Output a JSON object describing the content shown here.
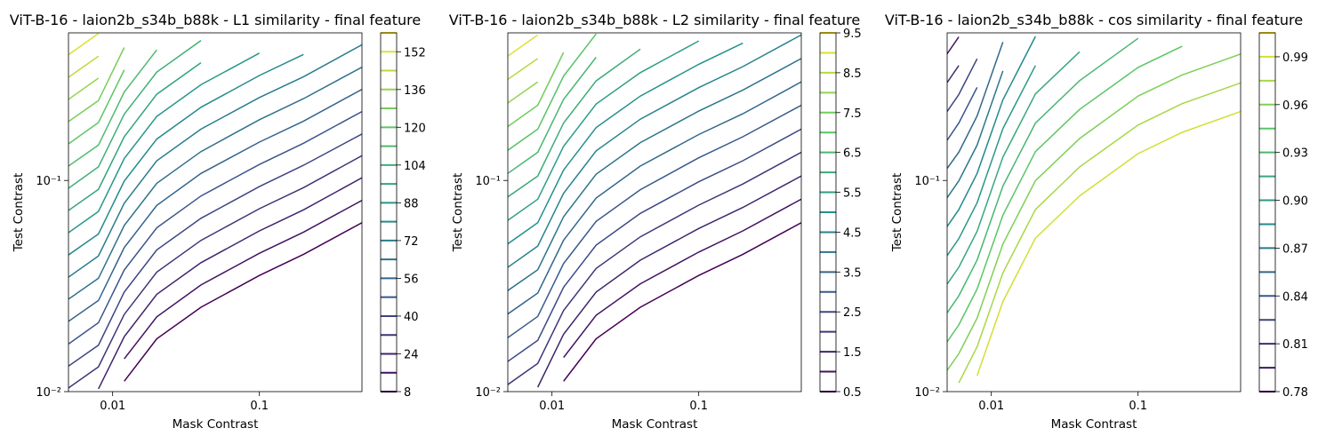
{
  "chart_data": [
    {
      "type": "contour",
      "title": "ViT-B-16 - laion2b_s34b_b88k - L1 similarity - final feature",
      "x_label": "Mask Contrast",
      "y_label": "Test Contrast",
      "xscale": "log",
      "yscale": "log",
      "colormap": "viridis",
      "xlim": [
        0.005,
        0.5
      ],
      "ylim": [
        0.01,
        0.5
      ],
      "xticks": [
        0.01,
        0.1
      ],
      "yticks": [
        {
          "value": 0.01,
          "label": "10⁻²"
        },
        {
          "value": 0.1,
          "label": "10⁻¹"
        }
      ],
      "colorbar_lim": [
        8,
        160
      ],
      "levels": [
        8,
        16,
        24,
        32,
        40,
        48,
        56,
        64,
        72,
        80,
        88,
        96,
        104,
        112,
        120,
        128,
        136,
        144,
        152,
        160
      ],
      "colorbar_ticks": [
        8,
        24,
        40,
        56,
        72,
        88,
        104,
        120,
        136,
        152
      ],
      "x": [
        0.005,
        0.008,
        0.012,
        0.02,
        0.04,
        0.1,
        0.2,
        0.5
      ],
      "series": [
        {
          "level": 8,
          "values": [
            null,
            null,
            0.0112,
            0.0178,
            0.0251,
            0.0355,
            0.0447,
            0.0631
          ]
        },
        {
          "level": 16,
          "values": [
            null,
            null,
            0.0143,
            0.0226,
            0.032,
            0.0452,
            0.0569,
            0.0804
          ]
        },
        {
          "level": 24,
          "values": [
            null,
            0.0103,
            0.0182,
            0.0289,
            0.0408,
            0.0577,
            0.0726,
            0.103
          ]
        },
        {
          "level": 32,
          "values": [
            0.0104,
            0.0131,
            0.0232,
            0.0368,
            0.052,
            0.0735,
            0.0925,
            0.131
          ]
        },
        {
          "level": 40,
          "values": [
            0.0132,
            0.0166,
            0.0296,
            0.0469,
            0.0662,
            0.0935,
            0.118,
            0.166
          ]
        },
        {
          "level": 48,
          "values": [
            0.0168,
            0.0212,
            0.0377,
            0.0597,
            0.0844,
            0.119,
            0.15,
            0.212
          ]
        },
        {
          "level": 56,
          "values": [
            0.0215,
            0.027,
            0.0481,
            0.0762,
            0.108,
            0.152,
            0.191,
            0.27
          ]
        },
        {
          "level": 64,
          "values": [
            0.0274,
            0.0344,
            0.0612,
            0.097,
            0.137,
            0.194,
            0.244,
            0.344
          ]
        },
        {
          "level": 72,
          "values": [
            0.0348,
            0.0439,
            0.078,
            0.124,
            0.175,
            0.247,
            0.31,
            0.439
          ]
        },
        {
          "level": 80,
          "values": [
            0.0444,
            0.0558,
            0.0993,
            0.157,
            0.222,
            0.314,
            0.395,
            null
          ]
        },
        {
          "level": 88,
          "values": [
            0.0566,
            0.0713,
            0.127,
            0.201,
            0.284,
            0.401,
            null,
            null
          ]
        },
        {
          "level": 96,
          "values": [
            0.0721,
            0.0908,
            0.161,
            0.256,
            0.361,
            null,
            null,
            null
          ]
        },
        {
          "level": 104,
          "values": [
            0.0918,
            0.116,
            0.206,
            0.326,
            0.46,
            null,
            null,
            null
          ]
        },
        {
          "level": 112,
          "values": [
            0.117,
            0.147,
            0.262,
            0.415,
            null,
            null,
            null,
            null
          ]
        },
        {
          "level": 120,
          "values": [
            0.149,
            0.188,
            0.334,
            null,
            null,
            null,
            null,
            null
          ]
        },
        {
          "level": 128,
          "values": [
            0.19,
            0.239,
            0.426,
            null,
            null,
            null,
            null,
            null
          ]
        },
        {
          "level": 136,
          "values": [
            0.242,
            0.305,
            null,
            null,
            null,
            null,
            null,
            null
          ]
        },
        {
          "level": 144,
          "values": [
            0.308,
            0.388,
            null,
            null,
            null,
            null,
            null,
            null
          ]
        },
        {
          "level": 152,
          "values": [
            0.394,
            0.496,
            null,
            null,
            null,
            null,
            null,
            null
          ]
        }
      ]
    },
    {
      "type": "contour",
      "title": "ViT-B-16 - laion2b_s34b_b88k - L2 similarity - final feature",
      "x_label": "Mask Contrast",
      "y_label": "Test Contrast",
      "xscale": "log",
      "yscale": "log",
      "colormap": "viridis",
      "xlim": [
        0.005,
        0.5
      ],
      "ylim": [
        0.01,
        0.5
      ],
      "xticks": [
        0.01,
        0.1
      ],
      "yticks": [
        {
          "value": 0.01,
          "label": "10⁻²"
        },
        {
          "value": 0.1,
          "label": "10⁻¹"
        }
      ],
      "colorbar_lim": [
        0.5,
        9.5
      ],
      "levels": [
        0.5,
        1,
        1.5,
        2,
        2.5,
        3,
        3.5,
        4,
        4.5,
        5,
        5.5,
        6,
        6.5,
        7,
        7.5,
        8,
        8.5,
        9,
        9.5
      ],
      "colorbar_ticks": [
        0.5,
        1.5,
        2.5,
        3.5,
        4.5,
        5.5,
        6.5,
        7.5,
        8.5,
        9.5
      ],
      "x": [
        0.005,
        0.008,
        0.012,
        0.02,
        0.04,
        0.1,
        0.2,
        0.5
      ],
      "series": [
        {
          "level": 0.5,
          "values": [
            null,
            null,
            0.0112,
            0.0178,
            0.0251,
            0.0355,
            0.0447,
            0.0631
          ]
        },
        {
          "level": 1,
          "values": [
            null,
            null,
            0.0145,
            0.023,
            0.0324,
            0.0458,
            0.0577,
            0.0815
          ]
        },
        {
          "level": 1.5,
          "values": [
            null,
            0.0105,
            0.0187,
            0.0296,
            0.0419,
            0.0592,
            0.0745,
            0.105
          ]
        },
        {
          "level": 2,
          "values": [
            0.0108,
            0.0136,
            0.0242,
            0.0383,
            0.0541,
            0.0764,
            0.0962,
            0.136
          ]
        },
        {
          "level": 2.5,
          "values": [
            0.0139,
            0.0175,
            0.0312,
            0.0494,
            0.0698,
            0.0986,
            0.124,
            0.175
          ]
        },
        {
          "level": 3,
          "values": [
            0.018,
            0.0227,
            0.0404,
            0.064,
            0.0904,
            0.128,
            0.161,
            0.227
          ]
        },
        {
          "level": 3.5,
          "values": [
            0.0233,
            0.0293,
            0.0521,
            0.0826,
            0.117,
            0.165,
            0.207,
            0.293
          ]
        },
        {
          "level": 4,
          "values": [
            0.0301,
            0.0378,
            0.0673,
            0.107,
            0.151,
            0.213,
            0.268,
            0.378
          ]
        },
        {
          "level": 4.5,
          "values": [
            0.0388,
            0.0489,
            0.0869,
            0.138,
            0.195,
            0.275,
            0.346,
            0.489
          ]
        },
        {
          "level": 5,
          "values": [
            0.0501,
            0.0631,
            0.112,
            0.178,
            0.251,
            0.355,
            0.447,
            null
          ]
        },
        {
          "level": 5.5,
          "values": [
            0.0647,
            0.0815,
            0.145,
            0.23,
            0.324,
            0.458,
            null,
            null
          ]
        },
        {
          "level": 6,
          "values": [
            0.0836,
            0.105,
            0.187,
            0.296,
            0.419,
            null,
            null,
            null
          ]
        },
        {
          "level": 6.5,
          "values": [
            0.108,
            0.136,
            0.242,
            0.383,
            null,
            null,
            null,
            null
          ]
        },
        {
          "level": 7,
          "values": [
            0.139,
            0.175,
            0.312,
            0.494,
            null,
            null,
            null,
            null
          ]
        },
        {
          "level": 7.5,
          "values": [
            0.18,
            0.227,
            0.404,
            null,
            null,
            null,
            null,
            null
          ]
        },
        {
          "level": 8,
          "values": [
            0.233,
            0.293,
            null,
            null,
            null,
            null,
            null,
            null
          ]
        },
        {
          "level": 8.5,
          "values": [
            0.301,
            0.378,
            null,
            null,
            null,
            null,
            null,
            null
          ]
        },
        {
          "level": 9,
          "values": [
            0.388,
            0.489,
            null,
            null,
            null,
            null,
            null,
            null
          ]
        }
      ]
    },
    {
      "type": "contour",
      "title": "ViT-B-16 - laion2b_s34b_b88k - cos similarity - final feature",
      "x_label": "Mask Contrast",
      "y_label": "Test Contrast",
      "xscale": "log",
      "yscale": "log",
      "colormap": "viridis",
      "xlim": [
        0.005,
        0.5
      ],
      "ylim": [
        0.01,
        0.5
      ],
      "xticks": [
        0.01,
        0.1
      ],
      "yticks": [
        {
          "value": 0.01,
          "label": "10⁻²"
        },
        {
          "value": 0.1,
          "label": "10⁻¹"
        }
      ],
      "colorbar_lim": [
        0.78,
        1.005
      ],
      "levels": [
        0.78,
        0.795,
        0.81,
        0.825,
        0.84,
        0.855,
        0.87,
        0.885,
        0.9,
        0.915,
        0.93,
        0.945,
        0.96,
        0.975,
        0.99,
        1.005
      ],
      "colorbar_ticks": [
        0.78,
        0.81,
        0.84,
        0.87,
        {
          "value": 0.9,
          "label": "0.90"
        },
        0.93,
        0.96,
        0.99
      ],
      "x": [
        0.005,
        0.006,
        0.008,
        0.012,
        0.02,
        0.04,
        0.1,
        0.2,
        0.5
      ],
      "series": [
        {
          "level": 0.795,
          "values": [
            0.398,
            0.478,
            null,
            null,
            null,
            null,
            null,
            null,
            null
          ]
        },
        {
          "level": 0.81,
          "values": [
            0.291,
            0.35,
            null,
            null,
            null,
            null,
            null,
            null,
            null
          ]
        },
        {
          "level": 0.825,
          "values": [
            0.212,
            0.255,
            0.377,
            null,
            null,
            null,
            null,
            null,
            null
          ]
        },
        {
          "level": 0.84,
          "values": [
            0.155,
            0.187,
            0.276,
            null,
            null,
            null,
            null,
            null,
            null
          ]
        },
        {
          "level": 0.855,
          "values": [
            0.114,
            0.136,
            0.202,
            0.452,
            null,
            null,
            null,
            null,
            null
          ]
        },
        {
          "level": 0.87,
          "values": [
            0.0828,
            0.0995,
            0.147,
            0.33,
            null,
            null,
            null,
            null,
            null
          ]
        },
        {
          "level": 0.885,
          "values": [
            0.0605,
            0.0727,
            0.108,
            0.241,
            0.481,
            null,
            null,
            null,
            null
          ]
        },
        {
          "level": 0.9,
          "values": [
            0.0441,
            0.053,
            0.0784,
            0.176,
            0.35,
            null,
            null,
            null,
            null
          ]
        },
        {
          "level": 0.915,
          "values": [
            0.0323,
            0.0388,
            0.0574,
            0.129,
            0.257,
            0.407,
            null,
            null,
            null
          ]
        },
        {
          "level": 0.93,
          "values": [
            0.0236,
            0.0284,
            0.042,
            0.094,
            0.187,
            0.297,
            0.471,
            null,
            null
          ]
        },
        {
          "level": 0.945,
          "values": [
            0.0172,
            0.0207,
            0.0306,
            0.0685,
            0.137,
            0.217,
            0.343,
            0.432,
            null
          ]
        },
        {
          "level": 0.96,
          "values": [
            0.0126,
            0.0151,
            0.0223,
            0.05,
            0.0998,
            0.158,
            0.251,
            0.316,
            0.397
          ]
        },
        {
          "level": 0.975,
          "values": [
            null,
            0.011,
            0.0163,
            0.0365,
            0.0729,
            0.116,
            0.183,
            0.231,
            0.29
          ]
        },
        {
          "level": 0.99,
          "values": [
            null,
            null,
            0.0119,
            0.0267,
            0.0533,
            0.0845,
            0.134,
            0.169,
            0.212
          ]
        }
      ]
    }
  ]
}
